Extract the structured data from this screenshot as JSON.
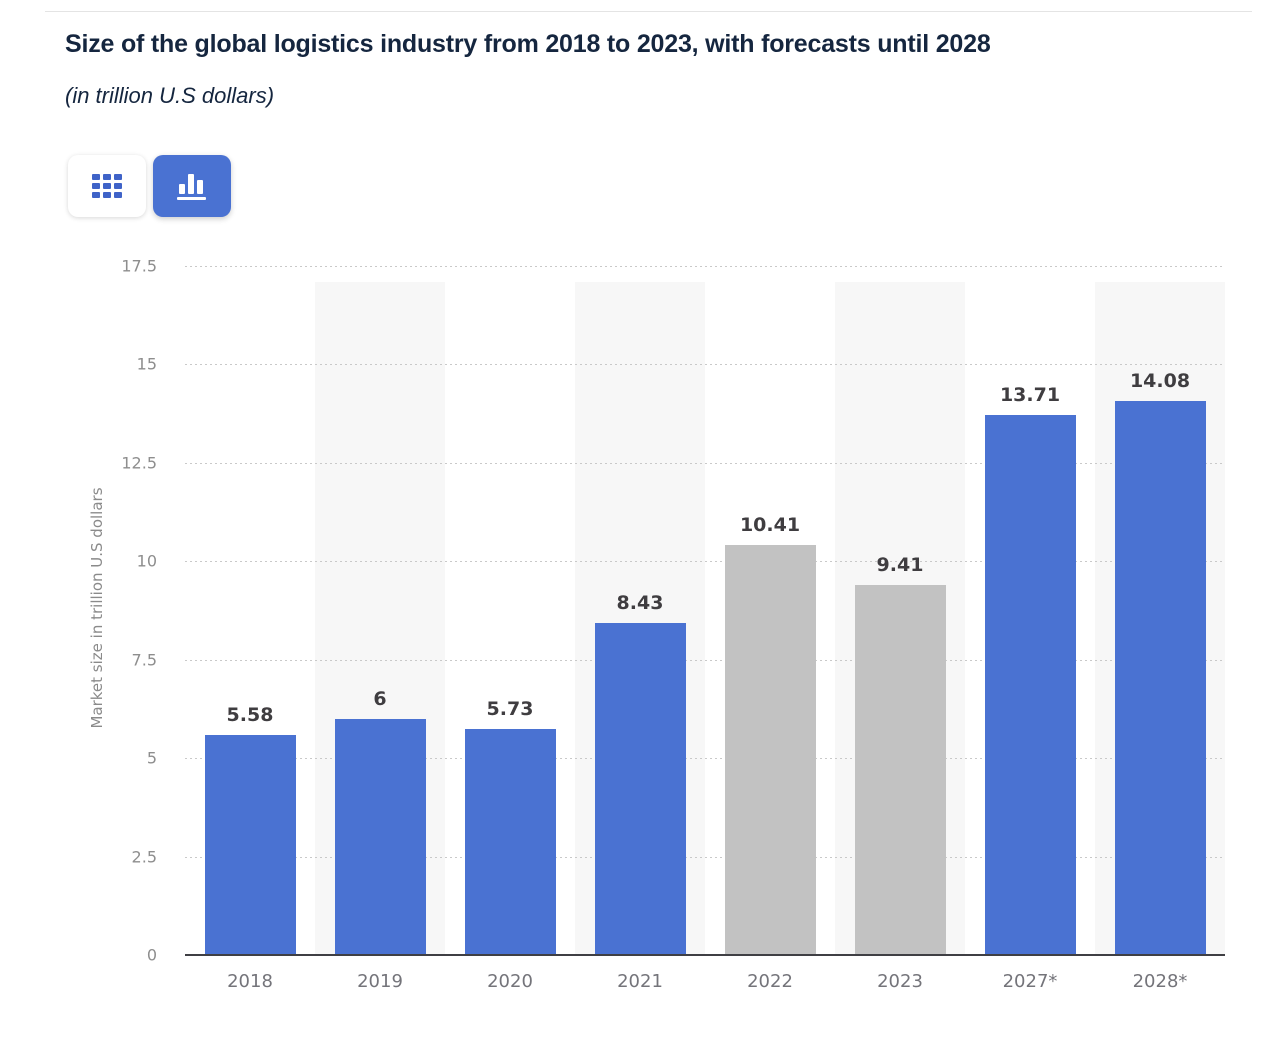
{
  "header": {
    "title": "Size of the global logistics industry from 2018 to 2023, with forecasts until 2028",
    "subtitle": "(in trillion U.S dollars)"
  },
  "toolbar": {
    "buttons": [
      {
        "name": "table-view",
        "icon": "grid-icon",
        "active": false
      },
      {
        "name": "chart-view",
        "icon": "bar-chart-icon",
        "active": true
      }
    ]
  },
  "chart_data": {
    "type": "bar",
    "title": "Size of the global logistics industry from 2018 to 2023, with forecasts until 2028",
    "subtitle": "(in trillion U.S dollars)",
    "categories": [
      "2018",
      "2019",
      "2020",
      "2021",
      "2022",
      "2023",
      "2027*",
      "2028*"
    ],
    "values": [
      5.58,
      6,
      5.73,
      8.43,
      10.41,
      9.41,
      13.71,
      14.08
    ],
    "value_labels": [
      "5.58",
      "6",
      "5.73",
      "8.43",
      "10.41",
      "9.41",
      "13.71",
      "14.08"
    ],
    "bar_colors": [
      "blue",
      "blue",
      "blue",
      "blue",
      "gray",
      "gray",
      "blue",
      "blue"
    ],
    "xlabel": "",
    "ylabel": "Market size in trillion U.S dollars",
    "ylim": [
      0,
      17.5
    ],
    "yticks": [
      0,
      2.5,
      5,
      7.5,
      10,
      12.5,
      15,
      17.5
    ],
    "ytick_labels": [
      "0",
      "2.5",
      "5",
      "7.5",
      "10",
      "12.5",
      "15",
      "17.5"
    ],
    "grid": "horizontal-dotted",
    "plot_bands": "alternating columns shaded on 2019, 2021, 2023, 2028*",
    "legend": "none",
    "colors": {
      "bar_blue": "#4a72d2",
      "bar_gray": "#c2c2c2",
      "band": "#f7f7f7",
      "gridline": "#c9c9c9",
      "axis_line": "#3f3f44",
      "value_label": "#3f3d40",
      "x_tick_label": "#74747a",
      "y_tick_label": "#8e8e8e",
      "title_navy": "#15263f"
    }
  }
}
